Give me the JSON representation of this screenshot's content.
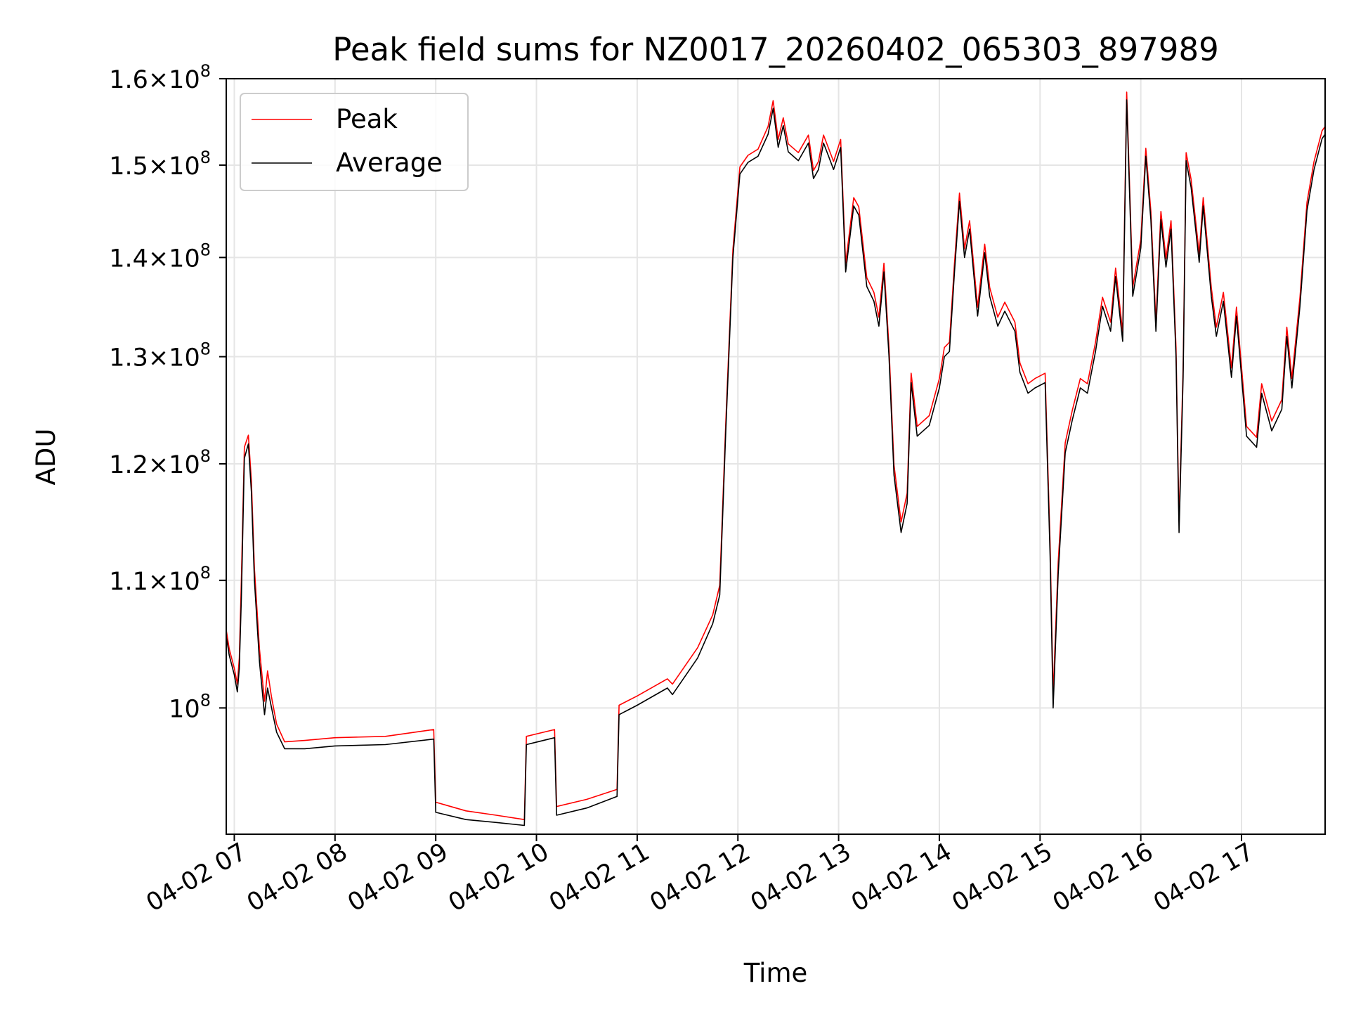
{
  "chart_data": {
    "type": "line",
    "title": "Peak field sums for NZ0017_20260402_065303_897989",
    "xlabel": "Time",
    "ylabel": "ADU",
    "yscale": "log",
    "ylim": [
      91000000,
      160000000
    ],
    "xlim_hours": [
      6.92,
      17.83
    ],
    "grid": true,
    "legend_position": "upper-left",
    "x_ticks": [
      {
        "hour": 7,
        "label": "04-02 07"
      },
      {
        "hour": 8,
        "label": "04-02 08"
      },
      {
        "hour": 9,
        "label": "04-02 09"
      },
      {
        "hour": 10,
        "label": "04-02 10"
      },
      {
        "hour": 11,
        "label": "04-02 11"
      },
      {
        "hour": 12,
        "label": "04-02 12"
      },
      {
        "hour": 13,
        "label": "04-02 13"
      },
      {
        "hour": 14,
        "label": "04-02 14"
      },
      {
        "hour": 15,
        "label": "04-02 15"
      },
      {
        "hour": 16,
        "label": "04-02 16"
      },
      {
        "hour": 17,
        "label": "04-02 17"
      }
    ],
    "y_ticks": [
      {
        "value": 100000000,
        "mantissa": "",
        "exponent": "8"
      },
      {
        "value": 110000000,
        "mantissa": "1.1",
        "exponent": "8"
      },
      {
        "value": 120000000,
        "mantissa": "1.2",
        "exponent": "8"
      },
      {
        "value": 130000000,
        "mantissa": "1.3",
        "exponent": "8"
      },
      {
        "value": 140000000,
        "mantissa": "1.4",
        "exponent": "8"
      },
      {
        "value": 150000000,
        "mantissa": "1.5",
        "exponent": "8"
      },
      {
        "value": 160000000,
        "mantissa": "1.6",
        "exponent": "8"
      }
    ],
    "series": [
      {
        "name": "Average",
        "color": "#000000",
        "points": [
          [
            6.92,
            105.5
          ],
          [
            6.95,
            104.0
          ],
          [
            7.0,
            102.5
          ],
          [
            7.03,
            101.2
          ],
          [
            7.05,
            103.0
          ],
          [
            7.07,
            108.5
          ],
          [
            7.1,
            120.5
          ],
          [
            7.14,
            121.8
          ],
          [
            7.17,
            117.5
          ],
          [
            7.2,
            110.0
          ],
          [
            7.25,
            103.5
          ],
          [
            7.3,
            99.5
          ],
          [
            7.33,
            101.5
          ],
          [
            7.37,
            100.0
          ],
          [
            7.42,
            98.2
          ],
          [
            7.5,
            97.0
          ],
          [
            7.7,
            97.0
          ],
          [
            8.0,
            97.2
          ],
          [
            8.5,
            97.3
          ],
          [
            8.98,
            97.7
          ],
          [
            9.0,
            92.5
          ],
          [
            9.3,
            92.0
          ],
          [
            9.6,
            91.8
          ],
          [
            9.88,
            91.6
          ],
          [
            9.9,
            97.3
          ],
          [
            10.18,
            97.8
          ],
          [
            10.2,
            92.3
          ],
          [
            10.5,
            92.8
          ],
          [
            10.8,
            93.6
          ],
          [
            10.82,
            99.5
          ],
          [
            11.0,
            100.2
          ],
          [
            11.3,
            101.5
          ],
          [
            11.35,
            101.0
          ],
          [
            11.6,
            103.8
          ],
          [
            11.75,
            106.5
          ],
          [
            11.82,
            108.8
          ],
          [
            11.88,
            123.0
          ],
          [
            11.95,
            140.0
          ],
          [
            12.02,
            149.0
          ],
          [
            12.1,
            150.3
          ],
          [
            12.2,
            151.0
          ],
          [
            12.3,
            153.5
          ],
          [
            12.35,
            156.5
          ],
          [
            12.4,
            152.0
          ],
          [
            12.45,
            154.5
          ],
          [
            12.5,
            151.5
          ],
          [
            12.6,
            150.5
          ],
          [
            12.7,
            152.5
          ],
          [
            12.75,
            148.5
          ],
          [
            12.8,
            149.5
          ],
          [
            12.85,
            152.5
          ],
          [
            12.9,
            151.0
          ],
          [
            12.95,
            149.5
          ],
          [
            13.02,
            152.0
          ],
          [
            13.07,
            138.5
          ],
          [
            13.15,
            145.5
          ],
          [
            13.2,
            144.5
          ],
          [
            13.28,
            137.0
          ],
          [
            13.35,
            135.5
          ],
          [
            13.4,
            133.0
          ],
          [
            13.45,
            138.5
          ],
          [
            13.5,
            130.0
          ],
          [
            13.55,
            119.0
          ],
          [
            13.62,
            114.0
          ],
          [
            13.68,
            116.5
          ],
          [
            13.72,
            127.5
          ],
          [
            13.78,
            122.5
          ],
          [
            13.9,
            123.5
          ],
          [
            14.0,
            127.0
          ],
          [
            14.05,
            130.0
          ],
          [
            14.1,
            130.5
          ],
          [
            14.15,
            138.5
          ],
          [
            14.2,
            146.0
          ],
          [
            14.25,
            140.0
          ],
          [
            14.3,
            143.0
          ],
          [
            14.38,
            134.0
          ],
          [
            14.45,
            140.5
          ],
          [
            14.5,
            136.0
          ],
          [
            14.58,
            133.0
          ],
          [
            14.65,
            134.5
          ],
          [
            14.75,
            132.5
          ],
          [
            14.8,
            128.5
          ],
          [
            14.88,
            126.5
          ],
          [
            14.95,
            127.0
          ],
          [
            15.05,
            127.5
          ],
          [
            15.1,
            112.0
          ],
          [
            15.13,
            100.0
          ],
          [
            15.18,
            110.5
          ],
          [
            15.25,
            121.0
          ],
          [
            15.32,
            124.0
          ],
          [
            15.4,
            127.0
          ],
          [
            15.47,
            126.5
          ],
          [
            15.55,
            130.5
          ],
          [
            15.62,
            135.0
          ],
          [
            15.7,
            132.5
          ],
          [
            15.75,
            138.0
          ],
          [
            15.82,
            131.5
          ],
          [
            15.86,
            157.5
          ],
          [
            15.92,
            136.0
          ],
          [
            16.0,
            141.0
          ],
          [
            16.05,
            151.0
          ],
          [
            16.1,
            144.0
          ],
          [
            16.15,
            132.5
          ],
          [
            16.2,
            144.0
          ],
          [
            16.25,
            139.0
          ],
          [
            16.3,
            143.0
          ],
          [
            16.35,
            130.0
          ],
          [
            16.38,
            114.0
          ],
          [
            16.42,
            128.0
          ],
          [
            16.45,
            150.5
          ],
          [
            16.5,
            147.5
          ],
          [
            16.58,
            139.5
          ],
          [
            16.62,
            145.5
          ],
          [
            16.7,
            136.0
          ],
          [
            16.75,
            132.0
          ],
          [
            16.82,
            135.5
          ],
          [
            16.9,
            128.0
          ],
          [
            16.95,
            134.0
          ],
          [
            17.05,
            122.5
          ],
          [
            17.15,
            121.5
          ],
          [
            17.2,
            126.5
          ],
          [
            17.3,
            123.0
          ],
          [
            17.4,
            125.0
          ],
          [
            17.45,
            132.0
          ],
          [
            17.5,
            127.0
          ],
          [
            17.58,
            135.0
          ],
          [
            17.65,
            145.0
          ],
          [
            17.72,
            149.5
          ],
          [
            17.8,
            153.0
          ],
          [
            17.83,
            153.5
          ]
        ]
      },
      {
        "name": "Peak",
        "color": "#ff0000",
        "points": [
          [
            6.92,
            106.0
          ],
          [
            6.95,
            104.5
          ],
          [
            7.0,
            103.0
          ],
          [
            7.03,
            101.8
          ],
          [
            7.05,
            103.8
          ],
          [
            7.07,
            110.0
          ],
          [
            7.1,
            121.5
          ],
          [
            7.14,
            122.6
          ],
          [
            7.17,
            118.5
          ],
          [
            7.2,
            111.0
          ],
          [
            7.25,
            104.5
          ],
          [
            7.3,
            100.5
          ],
          [
            7.33,
            102.8
          ],
          [
            7.37,
            100.8
          ],
          [
            7.42,
            98.8
          ],
          [
            7.5,
            97.5
          ],
          [
            7.7,
            97.6
          ],
          [
            8.0,
            97.8
          ],
          [
            8.5,
            97.9
          ],
          [
            8.98,
            98.4
          ],
          [
            9.0,
            93.2
          ],
          [
            9.3,
            92.6
          ],
          [
            9.6,
            92.3
          ],
          [
            9.88,
            92.0
          ],
          [
            9.9,
            97.9
          ],
          [
            10.18,
            98.4
          ],
          [
            10.2,
            92.9
          ],
          [
            10.5,
            93.4
          ],
          [
            10.8,
            94.1
          ],
          [
            10.82,
            100.2
          ],
          [
            11.0,
            100.9
          ],
          [
            11.3,
            102.2
          ],
          [
            11.35,
            101.8
          ],
          [
            11.6,
            104.6
          ],
          [
            11.75,
            107.2
          ],
          [
            11.82,
            109.6
          ],
          [
            11.88,
            123.8
          ],
          [
            11.95,
            140.8
          ],
          [
            12.02,
            149.8
          ],
          [
            12.1,
            151.1
          ],
          [
            12.2,
            151.8
          ],
          [
            12.3,
            154.4
          ],
          [
            12.35,
            157.4
          ],
          [
            12.4,
            152.9
          ],
          [
            12.45,
            155.4
          ],
          [
            12.5,
            152.4
          ],
          [
            12.6,
            151.4
          ],
          [
            12.7,
            153.4
          ],
          [
            12.75,
            149.4
          ],
          [
            12.8,
            150.4
          ],
          [
            12.85,
            153.4
          ],
          [
            12.9,
            151.9
          ],
          [
            12.95,
            150.4
          ],
          [
            13.02,
            152.9
          ],
          [
            13.07,
            139.4
          ],
          [
            13.15,
            146.4
          ],
          [
            13.2,
            145.4
          ],
          [
            13.28,
            137.9
          ],
          [
            13.35,
            136.4
          ],
          [
            13.4,
            133.9
          ],
          [
            13.45,
            139.4
          ],
          [
            13.5,
            130.9
          ],
          [
            13.55,
            119.9
          ],
          [
            13.62,
            114.9
          ],
          [
            13.68,
            117.4
          ],
          [
            13.72,
            128.4
          ],
          [
            13.78,
            123.4
          ],
          [
            13.9,
            124.4
          ],
          [
            14.0,
            127.9
          ],
          [
            14.05,
            130.9
          ],
          [
            14.1,
            131.4
          ],
          [
            14.15,
            139.4
          ],
          [
            14.2,
            146.9
          ],
          [
            14.25,
            140.9
          ],
          [
            14.3,
            143.9
          ],
          [
            14.38,
            134.9
          ],
          [
            14.45,
            141.4
          ],
          [
            14.5,
            136.9
          ],
          [
            14.58,
            133.9
          ],
          [
            14.65,
            135.4
          ],
          [
            14.75,
            133.4
          ],
          [
            14.8,
            129.4
          ],
          [
            14.88,
            127.4
          ],
          [
            14.95,
            127.9
          ],
          [
            15.05,
            128.4
          ],
          [
            15.1,
            113.0
          ],
          [
            15.13,
            101.0
          ],
          [
            15.18,
            111.5
          ],
          [
            15.25,
            121.9
          ],
          [
            15.32,
            124.9
          ],
          [
            15.4,
            127.9
          ],
          [
            15.47,
            127.4
          ],
          [
            15.55,
            131.4
          ],
          [
            15.62,
            135.9
          ],
          [
            15.7,
            133.4
          ],
          [
            15.75,
            138.9
          ],
          [
            15.82,
            132.4
          ],
          [
            15.86,
            158.4
          ],
          [
            15.92,
            136.9
          ],
          [
            16.0,
            141.9
          ],
          [
            16.05,
            151.9
          ],
          [
            16.1,
            144.9
          ],
          [
            16.15,
            133.4
          ],
          [
            16.2,
            144.9
          ],
          [
            16.25,
            139.9
          ],
          [
            16.3,
            143.9
          ],
          [
            16.35,
            130.9
          ],
          [
            16.38,
            114.9
          ],
          [
            16.42,
            128.9
          ],
          [
            16.45,
            151.4
          ],
          [
            16.5,
            148.4
          ],
          [
            16.58,
            140.4
          ],
          [
            16.62,
            146.4
          ],
          [
            16.7,
            136.9
          ],
          [
            16.75,
            132.9
          ],
          [
            16.82,
            136.4
          ],
          [
            16.9,
            128.9
          ],
          [
            16.95,
            134.9
          ],
          [
            17.05,
            123.4
          ],
          [
            17.15,
            122.4
          ],
          [
            17.2,
            127.4
          ],
          [
            17.3,
            123.9
          ],
          [
            17.4,
            125.9
          ],
          [
            17.45,
            132.9
          ],
          [
            17.5,
            127.9
          ],
          [
            17.58,
            135.9
          ],
          [
            17.65,
            145.9
          ],
          [
            17.72,
            150.4
          ],
          [
            17.8,
            153.9
          ],
          [
            17.83,
            154.4
          ]
        ]
      }
    ]
  }
}
